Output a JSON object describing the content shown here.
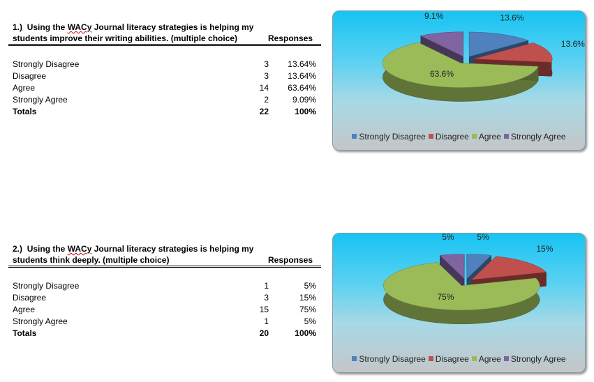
{
  "questions": [
    {
      "title_num": "1.)",
      "title_pre": "Using the ",
      "title_wacy": "WACy",
      "title_post": " Journal literacy strategies is helping my students improve their writing abilities. (multiple choice)",
      "responses_label": "Responses",
      "rows": [
        {
          "label": "Strongly Disagree",
          "count": "3",
          "percent": "13.64%"
        },
        {
          "label": "Disagree",
          "count": "3",
          "percent": "13.64%"
        },
        {
          "label": "Agree",
          "count": "14",
          "percent": "63.64%"
        },
        {
          "label": "Strongly Agree",
          "count": "2",
          "percent": "9.09%"
        }
      ],
      "total": {
        "label": "Totals",
        "count": "22",
        "percent": "100%"
      }
    },
    {
      "title_num": "2.)",
      "title_pre": "Using the ",
      "title_wacy": "WACy",
      "title_post": " Journal literacy strategies is helping my students think deeply. (multiple choice)",
      "responses_label": "Responses",
      "rows": [
        {
          "label": "Strongly Disagree",
          "count": "1",
          "percent": "5%"
        },
        {
          "label": "Disagree",
          "count": "3",
          "percent": "15%"
        },
        {
          "label": "Agree",
          "count": "15",
          "percent": "75%"
        },
        {
          "label": "Strongly Agree",
          "count": "1",
          "percent": "5%"
        }
      ],
      "total": {
        "label": "Totals",
        "count": "20",
        "percent": "100%"
      }
    }
  ],
  "colors": {
    "strongly_disagree": "#4f81bd",
    "disagree": "#c0504d",
    "agree": "#9bbb59",
    "strongly_agree": "#8064a2"
  },
  "chart_data": [
    {
      "type": "pie",
      "style": "3d-exploded",
      "categories": [
        "Strongly Disagree",
        "Disagree",
        "Agree",
        "Strongly Agree"
      ],
      "values": [
        13.6,
        13.6,
        63.6,
        9.1
      ],
      "labels": [
        "13.6%",
        "13.6%",
        "63.6%",
        "9.1%"
      ],
      "legend": "bottom"
    },
    {
      "type": "pie",
      "style": "3d-exploded",
      "categories": [
        "Strongly Disagree",
        "Disagree",
        "Agree",
        "Strongly Agree"
      ],
      "values": [
        5,
        15,
        75,
        5
      ],
      "labels": [
        "5%",
        "15%",
        "75%",
        "5%"
      ],
      "legend": "bottom"
    }
  ]
}
